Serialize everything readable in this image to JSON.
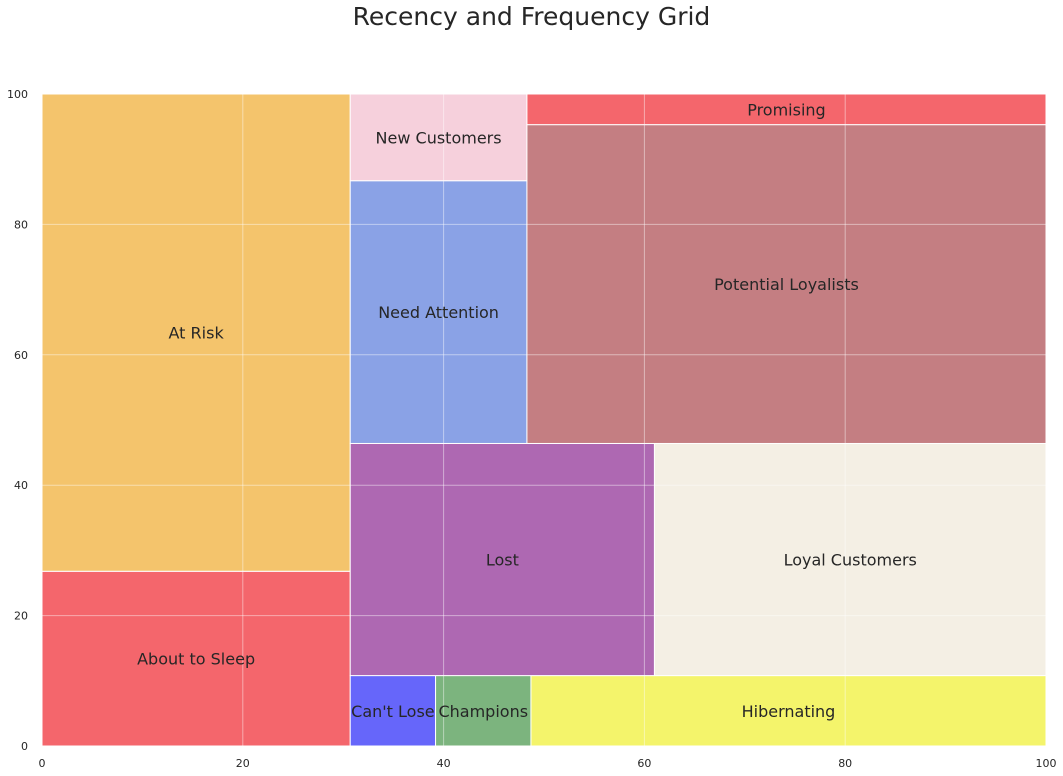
{
  "chart_data": {
    "type": "treemap",
    "title": "Recency and Frequency Grid",
    "xlim": [
      0,
      100
    ],
    "ylim": [
      0,
      100
    ],
    "xticks": [
      "0",
      "20",
      "40",
      "60",
      "80",
      "100"
    ],
    "yticks": [
      "0",
      "20",
      "40",
      "60",
      "80",
      "100"
    ],
    "grid": true,
    "segments": [
      {
        "name": "About to Sleep",
        "x": 0,
        "y": 0,
        "dx": 30.7,
        "dy": 26.8,
        "color": "#f4666c"
      },
      {
        "name": "At Risk",
        "x": 0,
        "y": 26.8,
        "dx": 30.7,
        "dy": 73.2,
        "color": "#f4c46c"
      },
      {
        "name": "Can't Lose",
        "x": 30.7,
        "y": 0,
        "dx": 8.5,
        "dy": 10.8,
        "color": "#6666fa"
      },
      {
        "name": "Champions",
        "x": 39.2,
        "y": 0,
        "dx": 9.5,
        "dy": 10.8,
        "color": "#7cb47e"
      },
      {
        "name": "Hibernating",
        "x": 48.7,
        "y": 0,
        "dx": 51.3,
        "dy": 10.8,
        "color": "#f4f46b"
      },
      {
        "name": "Lost",
        "x": 30.7,
        "y": 10.8,
        "dx": 30.3,
        "dy": 35.6,
        "color": "#ae68b2"
      },
      {
        "name": "Loyal Customers",
        "x": 61.0,
        "y": 10.8,
        "dx": 39.0,
        "dy": 35.6,
        "color": "#f4efe4"
      },
      {
        "name": "Need Attention",
        "x": 30.7,
        "y": 46.4,
        "dx": 17.6,
        "dy": 40.3,
        "color": "#8aa2e6"
      },
      {
        "name": "New Customers",
        "x": 30.7,
        "y": 86.7,
        "dx": 17.6,
        "dy": 13.3,
        "color": "#f6d0dc"
      },
      {
        "name": "Potential Loyalists",
        "x": 48.3,
        "y": 46.4,
        "dx": 51.7,
        "dy": 48.9,
        "color": "#c47e82"
      },
      {
        "name": "Promising",
        "x": 48.3,
        "y": 95.3,
        "dx": 51.7,
        "dy": 4.7,
        "color": "#f4666c"
      }
    ]
  }
}
